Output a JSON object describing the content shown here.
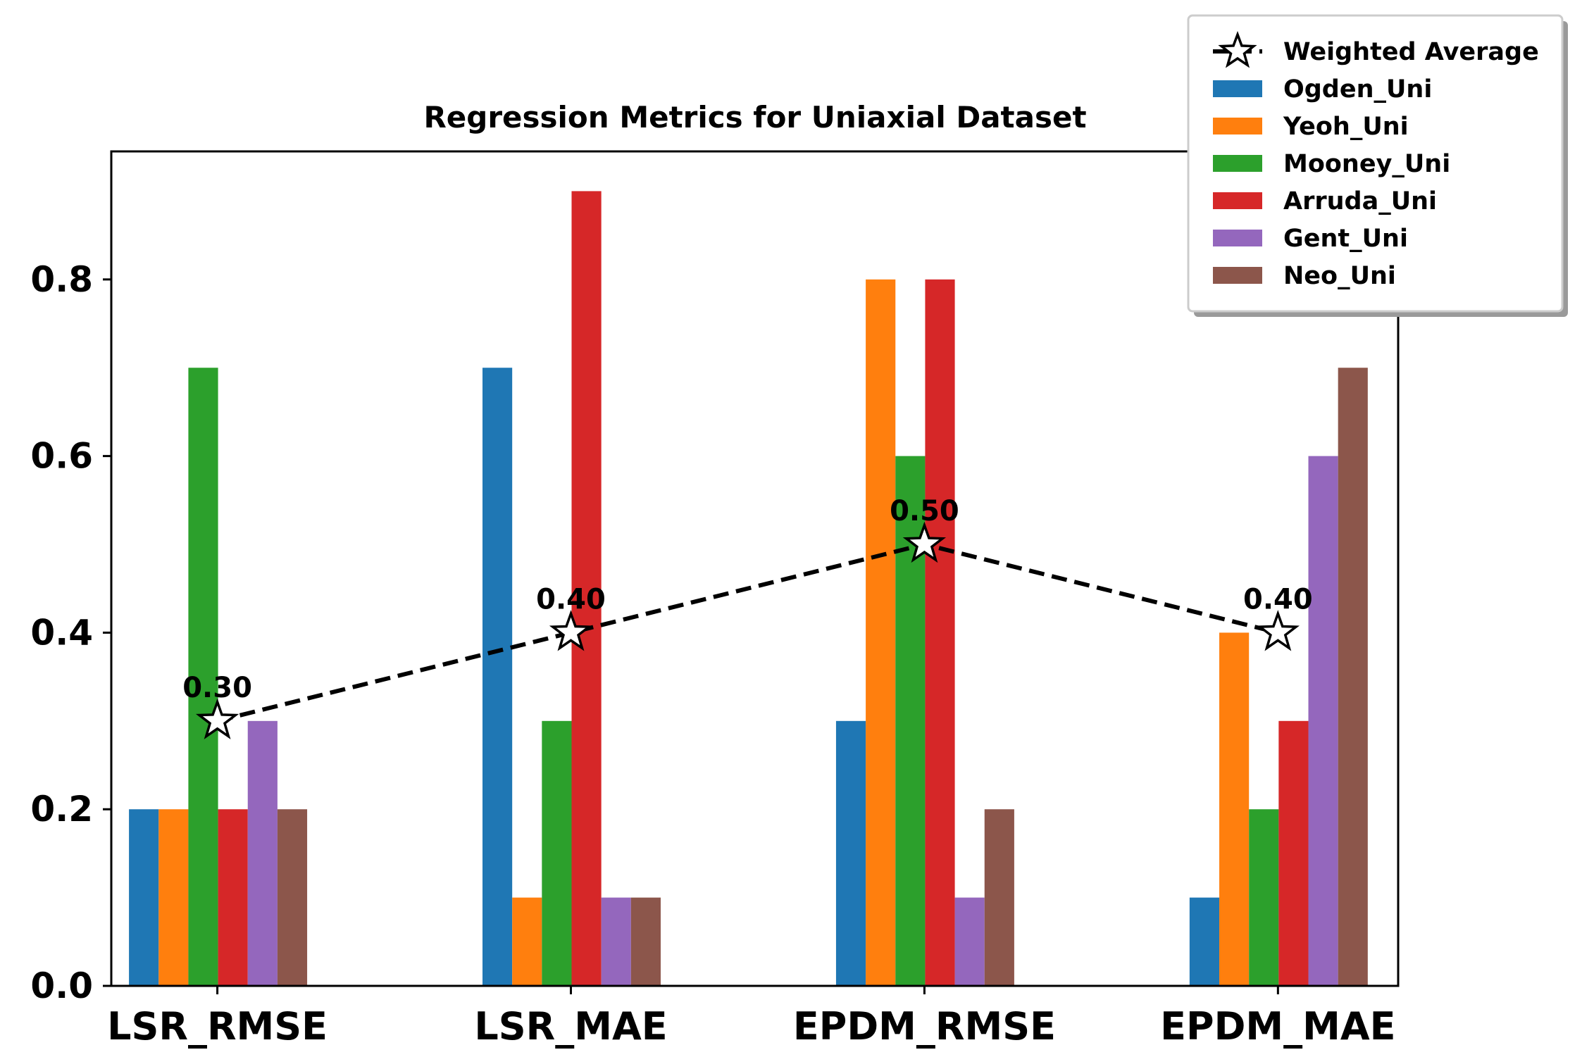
{
  "chart_data": {
    "type": "bar",
    "title": "Regression Metrics for Uniaxial Dataset",
    "xlabel": "",
    "ylabel": "",
    "categories": [
      "LSR_RMSE",
      "LSR_MAE",
      "EPDM_RMSE",
      "EPDM_MAE"
    ],
    "ylim": [
      0,
      0.945
    ],
    "yticks": [
      0.0,
      0.2,
      0.4,
      0.6,
      0.8
    ],
    "ytick_labels": [
      "0.0",
      "0.2",
      "0.4",
      "0.6",
      "0.8"
    ],
    "grid": false,
    "legend_position": "top-right",
    "series": [
      {
        "name": "Ogden_Uni",
        "color": "#1f77b4",
        "values": [
          0.2,
          0.7,
          0.3,
          0.1
        ]
      },
      {
        "name": "Yeoh_Uni",
        "color": "#ff7f0e",
        "values": [
          0.2,
          0.1,
          0.8,
          0.4
        ]
      },
      {
        "name": "Mooney_Uni",
        "color": "#2ca02c",
        "values": [
          0.7,
          0.3,
          0.6,
          0.2
        ]
      },
      {
        "name": "Arruda_Uni",
        "color": "#d62728",
        "values": [
          0.2,
          0.9,
          0.8,
          0.3
        ]
      },
      {
        "name": "Gent_Uni",
        "color": "#9467bd",
        "values": [
          0.3,
          0.1,
          0.1,
          0.6
        ]
      },
      {
        "name": "Neo_Uni",
        "color": "#8c564b",
        "values": [
          0.2,
          0.1,
          0.2,
          0.7
        ]
      }
    ],
    "line_series": {
      "name": "Weighted Average",
      "values": [
        0.3,
        0.4,
        0.5,
        0.4
      ],
      "labels": [
        "0.30",
        "0.40",
        "0.50",
        "0.40"
      ],
      "style": "dashed",
      "marker": "star"
    }
  }
}
